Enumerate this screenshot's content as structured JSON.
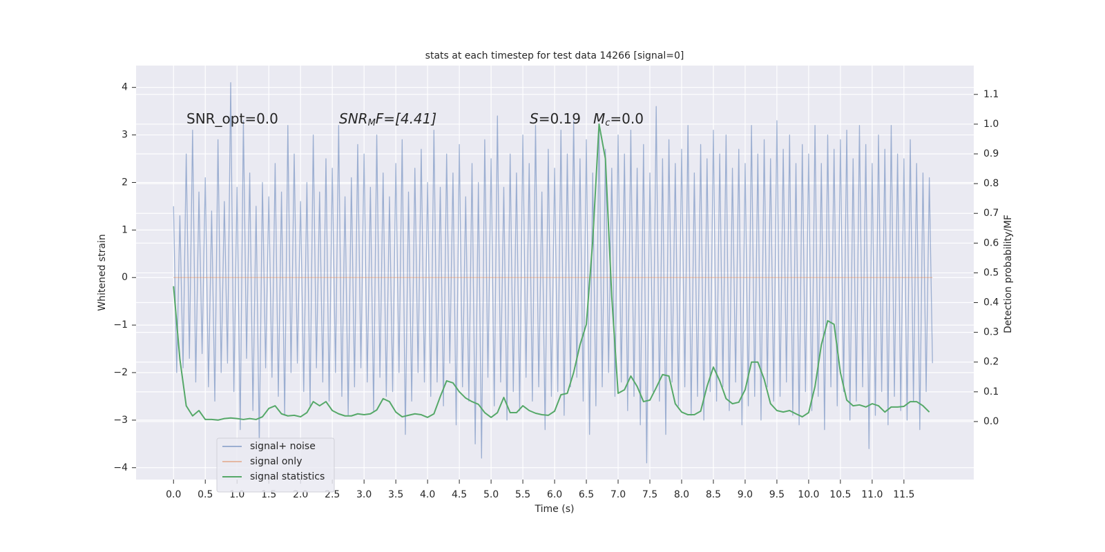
{
  "chart_data": {
    "type": "line",
    "title": "stats at each timestep for test data 14266 [signal=0]",
    "xlabel": "Time (s)",
    "ylabel": "Whitened strain",
    "y2label": "Detection probability/MF",
    "annotations": [
      {
        "base": "SNR_opt=0.0"
      },
      {
        "base": "SNR",
        "sub": "M",
        "rest": "F=[4.41]"
      },
      {
        "base": "S",
        "rest": "=0.19"
      },
      {
        "base": "M",
        "sub": "c",
        "rest": "=0.0"
      }
    ],
    "legend": "lower left",
    "grid": true,
    "xlim": [
      -0.59,
      12.6
    ],
    "ylim": [
      -4.25,
      4.46
    ],
    "y2lim": [
      -0.195,
      1.197
    ],
    "xticks": [
      {
        "value": 0,
        "label": "0.0"
      },
      {
        "value": 0.5,
        "label": "0.5"
      },
      {
        "value": 1,
        "label": "1.0"
      },
      {
        "value": 1.5,
        "label": "1.5"
      },
      {
        "value": 2,
        "label": "2.0"
      },
      {
        "value": 2.5,
        "label": "2.5"
      },
      {
        "value": 3,
        "label": "3.0"
      },
      {
        "value": 3.5,
        "label": "3.5"
      },
      {
        "value": 4,
        "label": "4.0"
      },
      {
        "value": 4.5,
        "label": "4.5"
      },
      {
        "value": 5,
        "label": "5.0"
      },
      {
        "value": 5.5,
        "label": "5.5"
      },
      {
        "value": 6,
        "label": "6.0"
      },
      {
        "value": 6.5,
        "label": "6.5"
      },
      {
        "value": 7,
        "label": "7.0"
      },
      {
        "value": 7.5,
        "label": "7.5"
      },
      {
        "value": 8,
        "label": "8.0"
      },
      {
        "value": 8.5,
        "label": "8.5"
      },
      {
        "value": 9,
        "label": "9.0"
      },
      {
        "value": 9.5,
        "label": "9.5"
      },
      {
        "value": 10,
        "label": "10.0"
      },
      {
        "value": 10.5,
        "label": "10.5"
      },
      {
        "value": 11,
        "label": "11.0"
      },
      {
        "value": 11.5,
        "label": "11.5"
      }
    ],
    "yticks": [
      {
        "value": -4,
        "label": "−4"
      },
      {
        "value": -3,
        "label": "−3"
      },
      {
        "value": -2,
        "label": "−2"
      },
      {
        "value": -1,
        "label": "−1"
      },
      0,
      1,
      2,
      3,
      4
    ],
    "y2ticks": [
      {
        "value": 0,
        "label": "0.0"
      },
      {
        "value": 0.1,
        "label": "0.1"
      },
      {
        "value": 0.2,
        "label": "0.2"
      },
      {
        "value": 0.3,
        "label": "0.3"
      },
      {
        "value": 0.4,
        "label": "0.4"
      },
      {
        "value": 0.5,
        "label": "0.5"
      },
      {
        "value": 0.6,
        "label": "0.6"
      },
      {
        "value": 0.7,
        "label": "0.7"
      },
      {
        "value": 0.8,
        "label": "0.8"
      },
      {
        "value": 0.9,
        "label": "0.9"
      },
      {
        "value": 1,
        "label": "1.0"
      },
      {
        "value": 1.1,
        "label": "1.1"
      }
    ],
    "series": [
      {
        "name": "signal+ noise",
        "color": "#4c72b0",
        "alpha": 0.5,
        "x": [
          0,
          0.05,
          0.1,
          0.15,
          0.2,
          0.25,
          0.3,
          0.35,
          0.4,
          0.45,
          0.5,
          0.55,
          0.6,
          0.65,
          0.7,
          0.75,
          0.8,
          0.85,
          0.9,
          0.95,
          1,
          1.05,
          1.1,
          1.15,
          1.2,
          1.25,
          1.3,
          1.35,
          1.4,
          1.45,
          1.5,
          1.55,
          1.6,
          1.65,
          1.7,
          1.75,
          1.8,
          1.85,
          1.9,
          1.95,
          2,
          2.05,
          2.1,
          2.15,
          2.2,
          2.25,
          2.3,
          2.35,
          2.4,
          2.45,
          2.5,
          2.55,
          2.6,
          2.65,
          2.7,
          2.75,
          2.8,
          2.85,
          2.9,
          2.95,
          3,
          3.05,
          3.1,
          3.15,
          3.2,
          3.25,
          3.3,
          3.35,
          3.4,
          3.45,
          3.5,
          3.55,
          3.6,
          3.65,
          3.7,
          3.75,
          3.8,
          3.85,
          3.9,
          3.95,
          4,
          4.05,
          4.1,
          4.15,
          4.2,
          4.25,
          4.3,
          4.35,
          4.4,
          4.45,
          4.5,
          4.55,
          4.6,
          4.65,
          4.7,
          4.75,
          4.8,
          4.85,
          4.9,
          4.95,
          5,
          5.05,
          5.1,
          5.15,
          5.2,
          5.25,
          5.3,
          5.35,
          5.4,
          5.45,
          5.5,
          5.55,
          5.6,
          5.65,
          5.7,
          5.75,
          5.8,
          5.85,
          5.9,
          5.95,
          6,
          6.05,
          6.1,
          6.15,
          6.2,
          6.25,
          6.3,
          6.35,
          6.4,
          6.45,
          6.5,
          6.55,
          6.6,
          6.65,
          6.7,
          6.75,
          6.8,
          6.85,
          6.9,
          6.95,
          7,
          7.05,
          7.1,
          7.15,
          7.2,
          7.25,
          7.3,
          7.35,
          7.4,
          7.45,
          7.5,
          7.55,
          7.6,
          7.65,
          7.7,
          7.75,
          7.8,
          7.85,
          7.9,
          7.95,
          8,
          8.05,
          8.1,
          8.15,
          8.2,
          8.25,
          8.3,
          8.35,
          8.4,
          8.45,
          8.5,
          8.55,
          8.6,
          8.65,
          8.7,
          8.75,
          8.8,
          8.85,
          8.9,
          8.95,
          9,
          9.05,
          9.1,
          9.15,
          9.2,
          9.25,
          9.3,
          9.35,
          9.4,
          9.45,
          9.5,
          9.55,
          9.6,
          9.65,
          9.7,
          9.75,
          9.8,
          9.85,
          9.9,
          9.95,
          10,
          10.05,
          10.1,
          10.15,
          10.2,
          10.25,
          10.3,
          10.35,
          10.4,
          10.45,
          10.5,
          10.55,
          10.6,
          10.65,
          10.7,
          10.75,
          10.8,
          10.85,
          10.9,
          10.95,
          11,
          11.05,
          11.1,
          11.15,
          11.2,
          11.25,
          11.3,
          11.35,
          11.4,
          11.45,
          11.5,
          11.55,
          11.6,
          11.65,
          11.7,
          11.75,
          11.8,
          11.85,
          11.9,
          11.95
        ],
        "values": [
          1.5,
          -2.0,
          1.3,
          -1.9,
          2.6,
          -1.7,
          3.1,
          -2.2,
          1.8,
          -1.6,
          2.1,
          -2.3,
          1.4,
          -2.6,
          2.9,
          -2.0,
          1.6,
          -1.8,
          4.1,
          -2.4,
          1.9,
          -3.2,
          3.3,
          -1.7,
          2.2,
          -2.8,
          1.5,
          -3.5,
          2.0,
          -1.9,
          1.7,
          -2.1,
          2.4,
          -2.5,
          1.8,
          -2.9,
          3.2,
          -2.0,
          2.6,
          -1.8,
          1.6,
          -2.4,
          2.0,
          -2.7,
          3.0,
          -1.9,
          1.8,
          -2.2,
          2.5,
          -2.6,
          2.3,
          -2.0,
          3.2,
          -2.5,
          1.7,
          -2.9,
          2.1,
          -2.3,
          2.8,
          -1.9,
          2.6,
          -2.2,
          1.9,
          -2.8,
          3.0,
          -2.1,
          2.2,
          -2.5,
          1.7,
          -2.4,
          2.4,
          -2.0,
          2.9,
          -3.3,
          1.8,
          -2.6,
          2.3,
          -2.0,
          2.7,
          -2.2,
          2.0,
          -2.5,
          3.1,
          -2.2,
          1.9,
          -2.7,
          2.6,
          -1.8,
          2.2,
          -3.1,
          2.8,
          -2.3,
          1.7,
          -2.6,
          2.4,
          -3.5,
          2.0,
          -3.8,
          2.9,
          -2.1,
          2.5,
          -2.7,
          3.4,
          -2.2,
          1.9,
          -3.0,
          2.6,
          -2.4,
          2.2,
          -2.8,
          3.0,
          -2.1,
          2.4,
          -2.6,
          3.2,
          -2.3,
          1.8,
          -3.2,
          2.7,
          -2.5,
          2.3,
          -2.4,
          3.1,
          -2.9,
          2.6,
          -2.3,
          3.3,
          -2.1,
          2.5,
          -2.6,
          2.9,
          -3.3,
          2.2,
          -2.7,
          3.2,
          -2.3,
          2.7,
          -2.0,
          2.3,
          -2.5,
          3.0,
          -2.2,
          2.6,
          -2.8,
          3.1,
          -2.5,
          2.3,
          -3.1,
          2.8,
          -3.9,
          2.2,
          -2.4,
          3.6,
          -2.6,
          2.5,
          -3.3,
          2.9,
          -2.2,
          2.4,
          -2.7,
          2.7,
          -2.3,
          3.2,
          -2.9,
          2.2,
          -2.5,
          2.8,
          -3.0,
          2.5,
          -2.4,
          3.1,
          -2.6,
          2.6,
          -2.3,
          3.0,
          -2.8,
          2.3,
          -2.2,
          2.7,
          -3.1,
          2.4,
          -2.7,
          3.2,
          -2.5,
          2.6,
          -3.0,
          2.9,
          -2.3,
          2.5,
          -2.6,
          3.3,
          -2.5,
          2.7,
          -2.2,
          3.0,
          -2.9,
          2.4,
          -3.1,
          2.8,
          -2.4,
          2.6,
          -2.8,
          3.2,
          -2.5,
          2.4,
          -3.2,
          3.0,
          -2.3,
          2.7,
          -2.7,
          2.9,
          -2.4,
          3.1,
          -3.0,
          2.5,
          -2.6,
          3.2,
          -2.3,
          2.8,
          -3.6,
          2.4,
          -2.9,
          3.0,
          -2.4,
          2.7,
          -3.1,
          3.2,
          -2.5,
          2.6,
          -2.8,
          2.5,
          -3.0,
          2.9,
          -2.6,
          2.4,
          -3.2,
          2.2,
          -2.4,
          2.1,
          -1.8
        ]
      },
      {
        "name": "signal only",
        "color": "#dd8452",
        "alpha": 0.5,
        "x": [
          0,
          11.95
        ],
        "values": [
          0,
          0
        ]
      },
      {
        "name": "signal statistics",
        "color": "#55a868",
        "alpha": 1,
        "axis": "y2",
        "x": [
          0,
          0.1,
          0.2,
          0.3,
          0.4,
          0.5,
          0.6,
          0.7,
          0.8,
          0.9,
          1,
          1.1,
          1.2,
          1.3,
          1.4,
          1.5,
          1.6,
          1.7,
          1.8,
          1.9,
          2,
          2.1,
          2.2,
          2.3,
          2.4,
          2.5,
          2.6,
          2.7,
          2.8,
          2.9,
          3,
          3.1,
          3.2,
          3.3,
          3.4,
          3.5,
          3.6,
          3.7,
          3.8,
          3.9,
          4,
          4.1,
          4.2,
          4.3,
          4.4,
          4.5,
          4.6,
          4.7,
          4.8,
          4.9,
          5,
          5.1,
          5.2,
          5.3,
          5.4,
          5.5,
          5.6,
          5.7,
          5.8,
          5.9,
          6,
          6.1,
          6.2,
          6.3,
          6.4,
          6.5,
          6.6,
          6.7,
          6.8,
          6.9,
          7,
          7.1,
          7.2,
          7.3,
          7.4,
          7.5,
          7.6,
          7.7,
          7.8,
          7.9,
          8,
          8.1,
          8.2,
          8.3,
          8.4,
          8.5,
          8.6,
          8.7,
          8.8,
          8.9,
          9,
          9.1,
          9.2,
          9.3,
          9.4,
          9.5,
          9.6,
          9.7,
          9.8,
          9.9,
          10,
          10.1,
          10.2,
          10.3,
          10.4,
          10.5,
          10.6,
          10.7,
          10.8,
          10.9,
          11,
          11.1,
          11.2,
          11.3,
          11.4,
          11.5,
          11.6,
          11.7,
          11.8,
          11.9
        ],
        "values": [
          0.455,
          0.21,
          0.053,
          0.019,
          0.037,
          0.007,
          0.007,
          0.005,
          0.01,
          0.012,
          0.01,
          0.007,
          0.01,
          0.007,
          0.016,
          0.044,
          0.053,
          0.026,
          0.019,
          0.021,
          0.016,
          0.03,
          0.067,
          0.053,
          0.067,
          0.037,
          0.026,
          0.019,
          0.019,
          0.026,
          0.023,
          0.026,
          0.039,
          0.077,
          0.067,
          0.032,
          0.016,
          0.021,
          0.026,
          0.023,
          0.014,
          0.026,
          0.084,
          0.137,
          0.13,
          0.1,
          0.079,
          0.067,
          0.058,
          0.03,
          0.014,
          0.03,
          0.081,
          0.03,
          0.03,
          0.053,
          0.037,
          0.028,
          0.023,
          0.021,
          0.035,
          0.09,
          0.095,
          0.165,
          0.258,
          0.327,
          0.606,
          1.0,
          0.884,
          0.42,
          0.095,
          0.107,
          0.153,
          0.118,
          0.067,
          0.072,
          0.114,
          0.158,
          0.153,
          0.06,
          0.032,
          0.023,
          0.023,
          0.035,
          0.118,
          0.183,
          0.137,
          0.077,
          0.06,
          0.065,
          0.107,
          0.2,
          0.2,
          0.142,
          0.06,
          0.037,
          0.032,
          0.037,
          0.026,
          0.016,
          0.03,
          0.118,
          0.258,
          0.339,
          0.327,
          0.165,
          0.072,
          0.053,
          0.056,
          0.049,
          0.06,
          0.053,
          0.032,
          0.049,
          0.049,
          0.051,
          0.067,
          0.067,
          0.053,
          0.032
        ]
      }
    ]
  }
}
